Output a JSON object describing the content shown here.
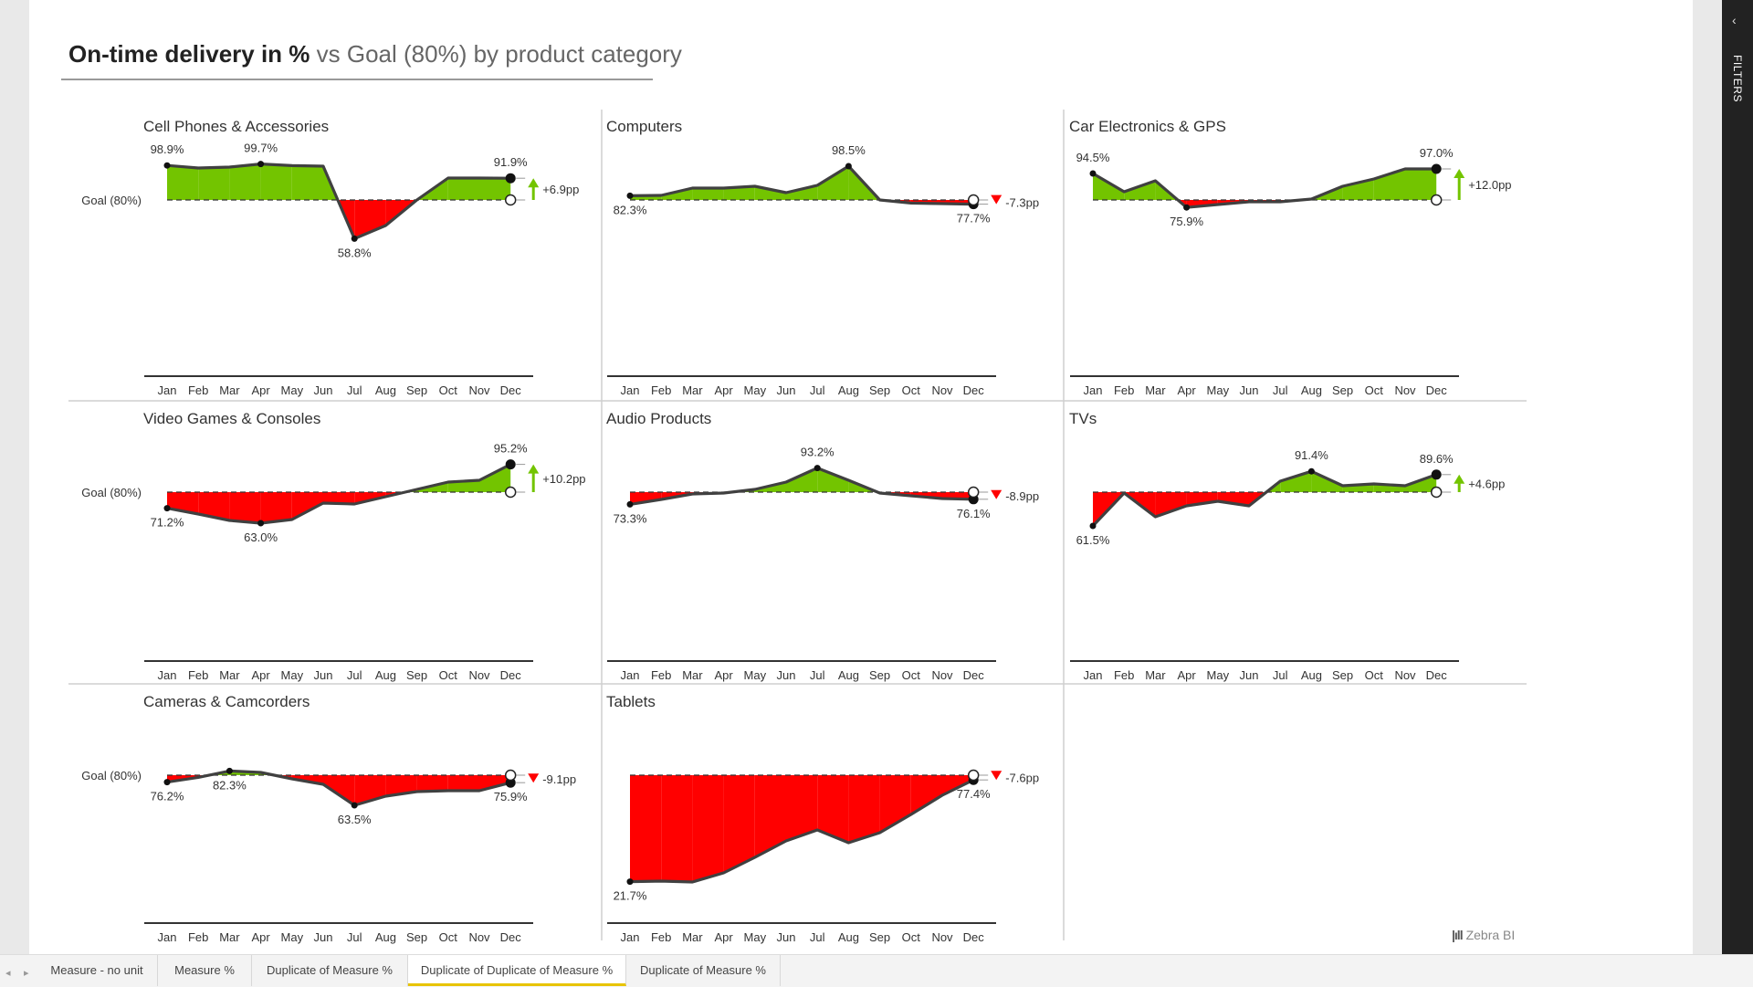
{
  "title": {
    "main": "On-time delivery in %",
    "sub": " vs Goal (80%) by product category"
  },
  "filters_label": "FILTERS",
  "watermark": "Zebra BI",
  "tabs": [
    "Measure - no unit",
    "Measure %",
    "Duplicate of Measure %",
    "Duplicate of Duplicate of Measure %",
    "Duplicate of Measure %"
  ],
  "active_tab": 3,
  "colors": {
    "positive": "#73c400",
    "negative": "#ff0000",
    "line": "#404040",
    "axis": "#333333"
  },
  "chart_data": [
    {
      "type": "area",
      "title": "Cell Phones & Accessories",
      "goal": 80,
      "goal_label": "Goal (80%)",
      "categories": [
        "Jan",
        "Feb",
        "Mar",
        "Apr",
        "May",
        "Jun",
        "Jul",
        "Aug",
        "Sep",
        "Oct",
        "Nov",
        "Dec"
      ],
      "values": [
        98.9,
        97.5,
        98.0,
        99.7,
        98.8,
        98.5,
        58.8,
        66.0,
        80.0,
        92.0,
        92.0,
        91.9
      ],
      "point_labels": [
        {
          "index": 0,
          "text": "98.9%",
          "pos": "above"
        },
        {
          "index": 3,
          "text": "99.7%",
          "pos": "above"
        },
        {
          "index": 6,
          "text": "58.8%",
          "pos": "below"
        },
        {
          "index": 11,
          "text": "91.9%",
          "pos": "above"
        }
      ],
      "variance": "+6.9pp"
    },
    {
      "type": "area",
      "title": "Computers",
      "goal": 80,
      "goal_label": "",
      "categories": [
        "Jan",
        "Feb",
        "Mar",
        "Apr",
        "May",
        "Jun",
        "Jul",
        "Aug",
        "Sep",
        "Oct",
        "Nov",
        "Dec"
      ],
      "values": [
        82.3,
        82.5,
        86.5,
        86.5,
        87.5,
        84.0,
        88.0,
        98.5,
        80.0,
        78.3,
        78.0,
        77.7
      ],
      "point_labels": [
        {
          "index": 0,
          "text": "82.3%",
          "pos": "below"
        },
        {
          "index": 7,
          "text": "98.5%",
          "pos": "above"
        },
        {
          "index": 11,
          "text": "77.7%",
          "pos": "below"
        }
      ],
      "variance": "-7.3pp"
    },
    {
      "type": "area",
      "title": "Car Electronics & GPS",
      "goal": 80,
      "goal_label": "",
      "categories": [
        "Jan",
        "Feb",
        "Mar",
        "Apr",
        "May",
        "Jun",
        "Jul",
        "Aug",
        "Sep",
        "Oct",
        "Nov",
        "Dec"
      ],
      "values": [
        94.5,
        84.5,
        90.5,
        75.9,
        77.5,
        79.0,
        79.0,
        80.5,
        87.5,
        91.5,
        97.0,
        97.0
      ],
      "point_labels": [
        {
          "index": 0,
          "text": "94.5%",
          "pos": "above"
        },
        {
          "index": 3,
          "text": "75.9%",
          "pos": "below"
        },
        {
          "index": 11,
          "text": "97.0%",
          "pos": "above"
        }
      ],
      "variance": "+12.0pp"
    },
    {
      "type": "area",
      "title": "Video Games & Consoles",
      "goal": 80,
      "goal_label": "Goal (80%)",
      "categories": [
        "Jan",
        "Feb",
        "Mar",
        "Apr",
        "May",
        "Jun",
        "Jul",
        "Aug",
        "Sep",
        "Oct",
        "Nov",
        "Dec"
      ],
      "values": [
        71.2,
        68.0,
        64.5,
        63.0,
        65.0,
        74.0,
        73.5,
        77.5,
        81.5,
        85.5,
        86.5,
        95.2
      ],
      "point_labels": [
        {
          "index": 0,
          "text": "71.2%",
          "pos": "below"
        },
        {
          "index": 3,
          "text": "63.0%",
          "pos": "below"
        },
        {
          "index": 11,
          "text": "95.2%",
          "pos": "above"
        }
      ],
      "variance": "+10.2pp"
    },
    {
      "type": "area",
      "title": "Audio Products",
      "goal": 80,
      "goal_label": "",
      "categories": [
        "Jan",
        "Feb",
        "Mar",
        "Apr",
        "May",
        "Jun",
        "Jul",
        "Aug",
        "Sep",
        "Oct",
        "Nov",
        "Dec"
      ],
      "values": [
        73.3,
        76.0,
        79.0,
        79.5,
        81.5,
        85.5,
        93.2,
        86.5,
        79.5,
        78.0,
        76.5,
        76.1
      ],
      "point_labels": [
        {
          "index": 0,
          "text": "73.3%",
          "pos": "below"
        },
        {
          "index": 6,
          "text": "93.2%",
          "pos": "above"
        },
        {
          "index": 11,
          "text": "76.1%",
          "pos": "below"
        }
      ],
      "variance": "-8.9pp"
    },
    {
      "type": "area",
      "title": "TVs",
      "goal": 80,
      "goal_label": "",
      "categories": [
        "Jan",
        "Feb",
        "Mar",
        "Apr",
        "May",
        "Jun",
        "Jul",
        "Aug",
        "Sep",
        "Oct",
        "Nov",
        "Dec"
      ],
      "values": [
        61.5,
        79.5,
        66.5,
        72.5,
        75.0,
        72.5,
        86.0,
        91.4,
        83.5,
        84.5,
        83.5,
        89.6
      ],
      "point_labels": [
        {
          "index": 0,
          "text": "61.5%",
          "pos": "below"
        },
        {
          "index": 7,
          "text": "91.4%",
          "pos": "above"
        },
        {
          "index": 11,
          "text": "89.6%",
          "pos": "above"
        }
      ],
      "variance": "+4.6pp"
    },
    {
      "type": "area",
      "title": "Cameras & Camcorders",
      "goal": 80,
      "goal_label": "Goal (80%)",
      "categories": [
        "Jan",
        "Feb",
        "Mar",
        "Apr",
        "May",
        "Jun",
        "Jul",
        "Aug",
        "Sep",
        "Oct",
        "Nov",
        "Dec"
      ],
      "values": [
        76.2,
        78.8,
        82.3,
        81.5,
        78.0,
        75.0,
        63.5,
        68.5,
        71.0,
        71.5,
        71.5,
        75.9
      ],
      "point_labels": [
        {
          "index": 0,
          "text": "76.2%",
          "pos": "below"
        },
        {
          "index": 2,
          "text": "82.3%",
          "pos": "below"
        },
        {
          "index": 6,
          "text": "63.5%",
          "pos": "below"
        },
        {
          "index": 11,
          "text": "75.9%",
          "pos": "below"
        }
      ],
      "variance": "-9.1pp"
    },
    {
      "type": "area",
      "title": "Tablets",
      "goal": 80,
      "goal_label": "",
      "categories": [
        "Jan",
        "Feb",
        "Mar",
        "Apr",
        "May",
        "Jun",
        "Jul",
        "Aug",
        "Sep",
        "Oct",
        "Nov",
        "Dec"
      ],
      "values": [
        21.7,
        22.0,
        21.5,
        26.5,
        35.0,
        44.0,
        50.0,
        43.0,
        48.5,
        58.5,
        69.0,
        77.4
      ],
      "point_labels": [
        {
          "index": 0,
          "text": "21.7%",
          "pos": "below"
        },
        {
          "index": 11,
          "text": "77.4%",
          "pos": "below"
        }
      ],
      "variance": "-7.6pp"
    }
  ]
}
